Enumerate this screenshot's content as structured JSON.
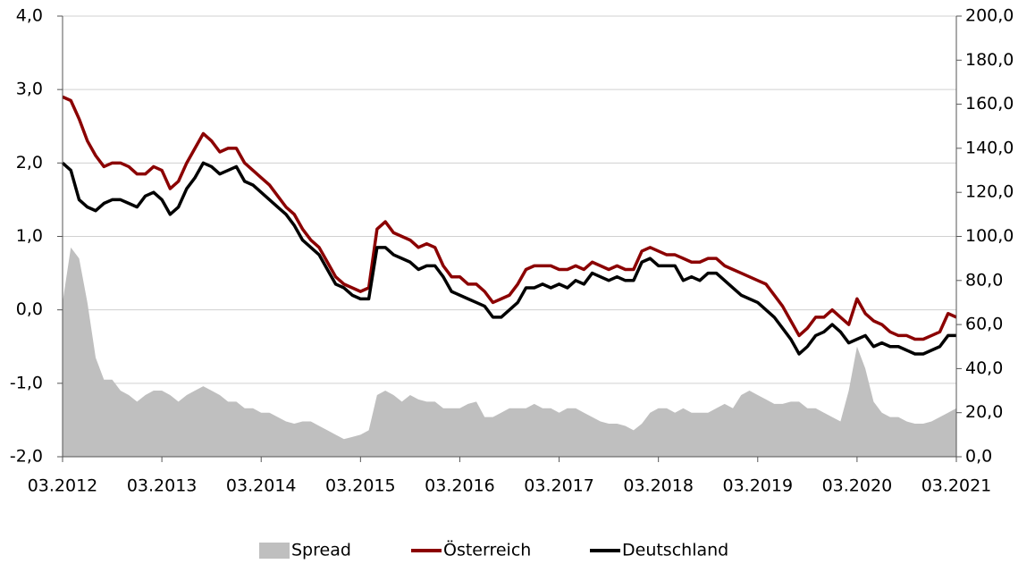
{
  "chart_data": {
    "type": "line",
    "x": [
      "03.2012",
      "04.2012",
      "05.2012",
      "06.2012",
      "07.2012",
      "08.2012",
      "09.2012",
      "10.2012",
      "11.2012",
      "12.2012",
      "01.2013",
      "02.2013",
      "03.2013",
      "04.2013",
      "05.2013",
      "06.2013",
      "07.2013",
      "08.2013",
      "09.2013",
      "10.2013",
      "11.2013",
      "12.2013",
      "01.2014",
      "02.2014",
      "03.2014",
      "04.2014",
      "05.2014",
      "06.2014",
      "07.2014",
      "08.2014",
      "09.2014",
      "10.2014",
      "11.2014",
      "12.2014",
      "01.2015",
      "02.2015",
      "03.2015",
      "04.2015",
      "05.2015",
      "06.2015",
      "07.2015",
      "08.2015",
      "09.2015",
      "10.2015",
      "11.2015",
      "12.2015",
      "01.2016",
      "02.2016",
      "03.2016",
      "04.2016",
      "05.2016",
      "06.2016",
      "07.2016",
      "08.2016",
      "09.2016",
      "10.2016",
      "11.2016",
      "12.2016",
      "01.2017",
      "02.2017",
      "03.2017",
      "04.2017",
      "05.2017",
      "06.2017",
      "07.2017",
      "08.2017",
      "09.2017",
      "10.2017",
      "11.2017",
      "12.2017",
      "01.2018",
      "02.2018",
      "03.2018",
      "04.2018",
      "05.2018",
      "06.2018",
      "07.2018",
      "08.2018",
      "09.2018",
      "10.2018",
      "11.2018",
      "12.2018",
      "01.2019",
      "02.2019",
      "03.2019",
      "04.2019",
      "05.2019",
      "06.2019",
      "07.2019",
      "08.2019",
      "09.2019",
      "10.2019",
      "11.2019",
      "12.2019",
      "01.2020",
      "02.2020",
      "03.2020",
      "04.2020",
      "05.2020",
      "06.2020",
      "07.2020",
      "08.2020",
      "09.2020",
      "10.2020",
      "11.2020",
      "12.2020",
      "01.2021",
      "02.2021",
      "03.2021"
    ],
    "series": [
      {
        "name": "Spread",
        "type": "area",
        "axis": "y2",
        "color": "#bfbfbf",
        "values": [
          70,
          95,
          90,
          70,
          45,
          35,
          35,
          30,
          28,
          25,
          28,
          30,
          30,
          28,
          25,
          28,
          30,
          32,
          30,
          28,
          25,
          25,
          22,
          22,
          20,
          20,
          18,
          16,
          15,
          16,
          16,
          14,
          12,
          10,
          8,
          9,
          10,
          12,
          28,
          30,
          28,
          25,
          28,
          26,
          25,
          25,
          22,
          22,
          22,
          24,
          25,
          18,
          18,
          20,
          22,
          22,
          22,
          24,
          22,
          22,
          20,
          22,
          22,
          20,
          18,
          16,
          15,
          15,
          14,
          12,
          15,
          20,
          22,
          22,
          20,
          22,
          20,
          20,
          20,
          22,
          24,
          22,
          28,
          30,
          28,
          26,
          24,
          24,
          25,
          25,
          22,
          22,
          20,
          18,
          16,
          30,
          50,
          40,
          25,
          20,
          18,
          18,
          16,
          15,
          15,
          16,
          18,
          20,
          22
        ]
      },
      {
        "name": "Österreich",
        "type": "line",
        "color": "#8b0000",
        "values": [
          2.9,
          2.85,
          2.6,
          2.3,
          2.1,
          1.95,
          2.0,
          2.0,
          1.95,
          1.85,
          1.85,
          1.95,
          1.9,
          1.65,
          1.75,
          2.0,
          2.2,
          2.4,
          2.3,
          2.15,
          2.2,
          2.2,
          2.0,
          1.9,
          1.8,
          1.7,
          1.55,
          1.4,
          1.3,
          1.1,
          0.95,
          0.85,
          0.65,
          0.45,
          0.35,
          0.3,
          0.25,
          0.3,
          1.1,
          1.2,
          1.05,
          1.0,
          0.95,
          0.85,
          0.9,
          0.85,
          0.6,
          0.45,
          0.45,
          0.35,
          0.35,
          0.25,
          0.1,
          0.15,
          0.2,
          0.35,
          0.55,
          0.6,
          0.6,
          0.6,
          0.55,
          0.55,
          0.6,
          0.55,
          0.65,
          0.6,
          0.55,
          0.6,
          0.55,
          0.55,
          0.8,
          0.85,
          0.8,
          0.75,
          0.75,
          0.7,
          0.65,
          0.65,
          0.7,
          0.7,
          0.6,
          0.55,
          0.5,
          0.45,
          0.4,
          0.35,
          0.2,
          0.05,
          -0.15,
          -0.35,
          -0.25,
          -0.1,
          -0.1,
          0.0,
          -0.1,
          -0.2,
          0.15,
          -0.05,
          -0.15,
          -0.2,
          -0.3,
          -0.35,
          -0.35,
          -0.4,
          -0.4,
          -0.35,
          -0.3,
          -0.05,
          -0.1
        ]
      },
      {
        "name": "Deutschland",
        "type": "line",
        "color": "#000000",
        "values": [
          2.0,
          1.9,
          1.5,
          1.4,
          1.35,
          1.45,
          1.5,
          1.5,
          1.45,
          1.4,
          1.55,
          1.6,
          1.5,
          1.3,
          1.4,
          1.65,
          1.8,
          2.0,
          1.95,
          1.85,
          1.9,
          1.95,
          1.75,
          1.7,
          1.6,
          1.5,
          1.4,
          1.3,
          1.15,
          0.95,
          0.85,
          0.75,
          0.55,
          0.35,
          0.3,
          0.2,
          0.15,
          0.15,
          0.85,
          0.85,
          0.75,
          0.7,
          0.65,
          0.55,
          0.6,
          0.6,
          0.45,
          0.25,
          0.2,
          0.15,
          0.1,
          0.05,
          -0.1,
          -0.1,
          0.0,
          0.1,
          0.3,
          0.3,
          0.35,
          0.3,
          0.35,
          0.3,
          0.4,
          0.35,
          0.5,
          0.45,
          0.4,
          0.45,
          0.4,
          0.4,
          0.65,
          0.7,
          0.6,
          0.6,
          0.6,
          0.4,
          0.45,
          0.4,
          0.5,
          0.5,
          0.4,
          0.3,
          0.2,
          0.15,
          0.1,
          0.0,
          -0.1,
          -0.25,
          -0.4,
          -0.6,
          -0.5,
          -0.35,
          -0.3,
          -0.2,
          -0.3,
          -0.45,
          -0.4,
          -0.35,
          -0.5,
          -0.45,
          -0.5,
          -0.5,
          -0.55,
          -0.6,
          -0.6,
          -0.55,
          -0.5,
          -0.35,
          -0.35
        ]
      }
    ],
    "ylim": [
      -2,
      4
    ],
    "yticks": [
      {
        "value": -2,
        "label": "-2,0"
      },
      {
        "value": -1,
        "label": "-1,0"
      },
      {
        "value": 0,
        "label": "0,0"
      },
      {
        "value": 1,
        "label": "1,0"
      },
      {
        "value": 2,
        "label": "2,0"
      },
      {
        "value": 3,
        "label": "3,0"
      },
      {
        "value": 4,
        "label": "4,0"
      }
    ],
    "y2lim": [
      0,
      200
    ],
    "y2ticks": [
      {
        "value": 0,
        "label": "0,0"
      },
      {
        "value": 20,
        "label": "20,0"
      },
      {
        "value": 40,
        "label": "40,0"
      },
      {
        "value": 60,
        "label": "60,0"
      },
      {
        "value": 80,
        "label": "80,0"
      },
      {
        "value": 100,
        "label": "100,0"
      },
      {
        "value": 120,
        "label": "120,0"
      },
      {
        "value": 140,
        "label": "140,0"
      },
      {
        "value": 160,
        "label": "160,0"
      },
      {
        "value": 180,
        "label": "180,0"
      },
      {
        "value": 200,
        "label": "200,0"
      }
    ],
    "grid": true,
    "legend": "bottom"
  }
}
